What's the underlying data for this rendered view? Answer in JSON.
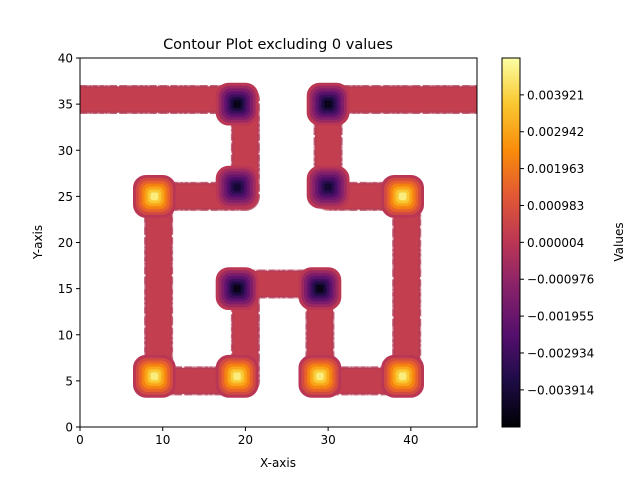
{
  "chart_data": {
    "type": "contour",
    "title": "Contour Plot excluding 0 values",
    "xlabel": "X-axis",
    "ylabel": "Y-axis",
    "xlim": [
      0,
      48
    ],
    "ylim": [
      0,
      40
    ],
    "x_ticks": [
      0,
      10,
      20,
      30,
      40
    ],
    "y_ticks": [
      0,
      5,
      10,
      15,
      20,
      25,
      30,
      35,
      40
    ],
    "x_tick_labels": [
      "0",
      "10",
      "20",
      "30",
      "40"
    ],
    "y_tick_labels": [
      "0",
      "5",
      "10",
      "15",
      "20",
      "25",
      "30",
      "35",
      "40"
    ],
    "colormap": "inferno",
    "colorbar": {
      "label": "Values",
      "range": [
        -0.0049,
        0.0049
      ],
      "ticks": [
        0.003921,
        0.002942,
        0.001963,
        0.000983,
        4e-06,
        -0.000976,
        -0.001955,
        -0.002934,
        -0.003914
      ],
      "tick_labels": [
        "0.003921",
        "0.002942",
        "0.001963",
        "0.000983",
        "0.000004",
        "−0.000976",
        "−0.001955",
        "−0.002934",
        "−0.003914"
      ]
    },
    "zero_level_color": "#c33f4f",
    "extrema": [
      {
        "x": 19,
        "y": 35,
        "value": -0.0045
      },
      {
        "x": 30,
        "y": 35,
        "value": -0.0045
      },
      {
        "x": 19,
        "y": 26,
        "value": -0.004
      },
      {
        "x": 30,
        "y": 26,
        "value": -0.004
      },
      {
        "x": 19,
        "y": 15,
        "value": -0.0045
      },
      {
        "x": 29,
        "y": 15,
        "value": -0.0045
      },
      {
        "x": 9,
        "y": 25,
        "value": 0.0045
      },
      {
        "x": 39,
        "y": 25,
        "value": 0.0045
      },
      {
        "x": 9,
        "y": 5.5,
        "value": 0.0045
      },
      {
        "x": 19,
        "y": 5.5,
        "value": 0.0045
      },
      {
        "x": 29,
        "y": 5.5,
        "value": 0.0045
      },
      {
        "x": 39,
        "y": 5.5,
        "value": 0.0045
      }
    ],
    "band_path": [
      [
        [
          0,
          35.5
        ],
        [
          20,
          35.5
        ],
        [
          20,
          25
        ],
        [
          9.5,
          25
        ],
        [
          9.5,
          5
        ],
        [
          20,
          5
        ],
        [
          20,
          15.5
        ],
        [
          29,
          15.5
        ],
        [
          29,
          5
        ],
        [
          39.5,
          5
        ],
        [
          39.5,
          25
        ],
        [
          30,
          25
        ],
        [
          30,
          35.5
        ],
        [
          48,
          35.5
        ]
      ]
    ]
  }
}
